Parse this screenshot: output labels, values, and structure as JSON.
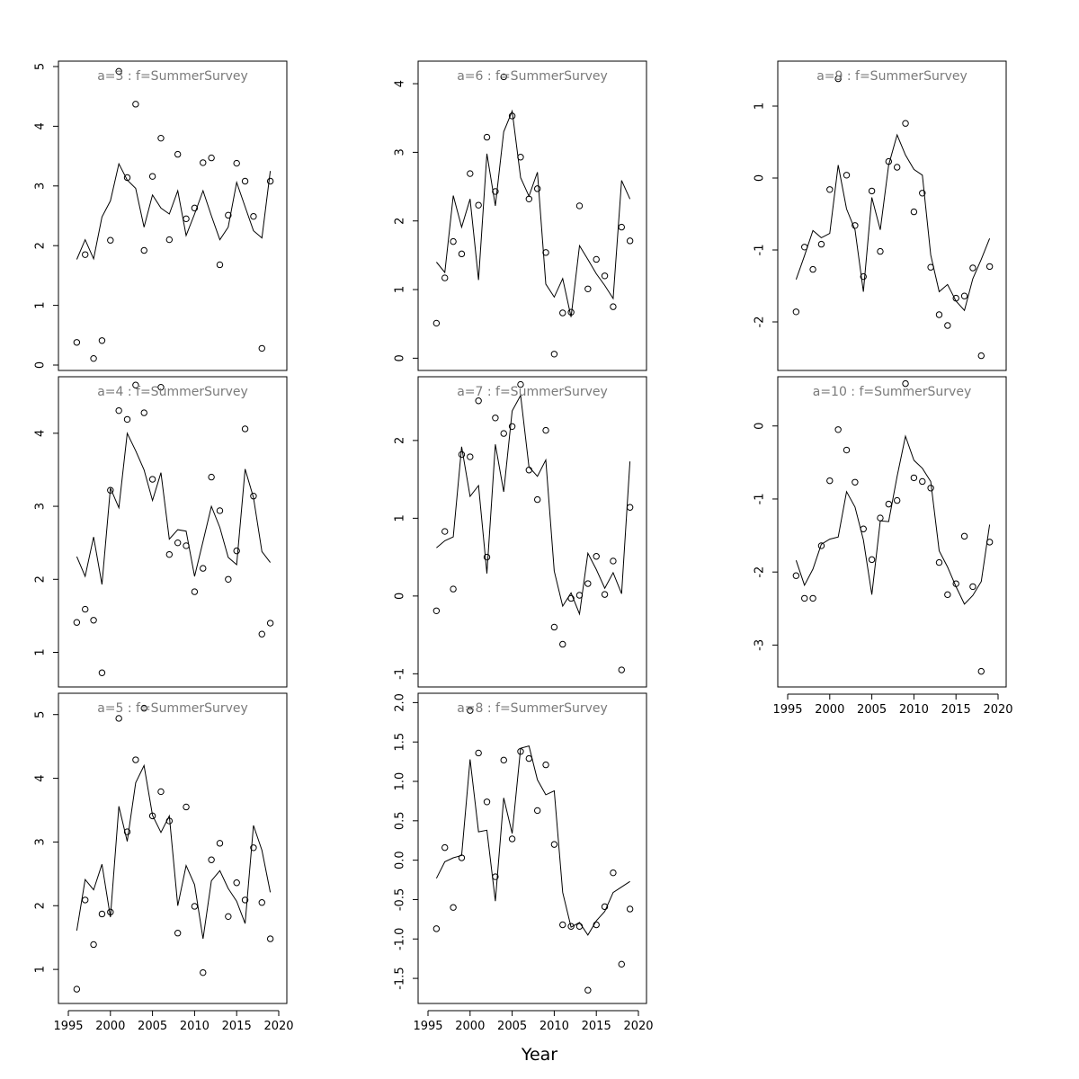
{
  "x_axis_label": "Year",
  "chart_data": [
    {
      "type": "scatter",
      "title": "a=3  :  f=SummerSurvey",
      "xlim": [
        1996,
        2019
      ],
      "ylim": [
        0,
        5
      ],
      "yticks": [
        0,
        1,
        2,
        3,
        4,
        5
      ],
      "x": [
        1996,
        1997,
        1998,
        1999,
        2000,
        2001,
        2002,
        2003,
        2004,
        2005,
        2006,
        2007,
        2008,
        2009,
        2010,
        2011,
        2012,
        2013,
        2014,
        2015,
        2016,
        2017,
        2018,
        2019
      ],
      "series": [
        {
          "kind": "points",
          "values": [
            0.38,
            1.85,
            0.11,
            0.41,
            2.09,
            4.92,
            3.14,
            4.37,
            1.92,
            3.16,
            3.8,
            2.1,
            3.53,
            2.45,
            2.63,
            3.39,
            3.47,
            1.68,
            2.51,
            3.38,
            3.08,
            2.49,
            0.28,
            3.08
          ]
        },
        {
          "kind": "line",
          "values": [
            1.77,
            2.1,
            1.78,
            2.48,
            2.75,
            3.37,
            3.1,
            2.96,
            2.31,
            2.85,
            2.63,
            2.53,
            2.92,
            2.17,
            2.53,
            2.92,
            2.5,
            2.1,
            2.31,
            3.06,
            2.65,
            2.25,
            2.13,
            3.25
          ]
        }
      ]
    },
    {
      "type": "scatter",
      "title": "a=4  :  f=SummerSurvey",
      "xlim": [
        1996,
        2019
      ],
      "ylim": [
        0.6,
        4.7
      ],
      "yticks": [
        1,
        2,
        3,
        4
      ],
      "x": [
        1996,
        1997,
        1998,
        1999,
        2000,
        2001,
        2002,
        2003,
        2004,
        2005,
        2006,
        2007,
        2008,
        2009,
        2010,
        2011,
        2012,
        2013,
        2014,
        2015,
        2016,
        2017,
        2018,
        2019
      ],
      "series": [
        {
          "kind": "points",
          "values": [
            1.41,
            1.59,
            1.44,
            0.72,
            3.22,
            4.31,
            4.19,
            4.66,
            4.28,
            3.37,
            4.63,
            2.34,
            2.5,
            2.46,
            1.83,
            2.15,
            3.4,
            2.94,
            2.0,
            2.39,
            4.06,
            3.14,
            1.25,
            1.4
          ]
        },
        {
          "kind": "line",
          "values": [
            2.31,
            2.04,
            2.58,
            1.93,
            3.25,
            2.98,
            4.0,
            3.76,
            3.5,
            3.08,
            3.46,
            2.55,
            2.68,
            2.66,
            2.04,
            2.52,
            3.0,
            2.71,
            2.3,
            2.2,
            3.51,
            3.12,
            2.38,
            2.23
          ]
        }
      ]
    },
    {
      "type": "scatter",
      "title": "a=5  :  f=SummerSurvey",
      "xlim": [
        1996,
        2019
      ],
      "ylim": [
        0.55,
        5.25
      ],
      "yticks": [
        1,
        2,
        3,
        4,
        5
      ],
      "x": [
        1996,
        1997,
        1998,
        1999,
        2000,
        2001,
        2002,
        2003,
        2004,
        2005,
        2006,
        2007,
        2008,
        2009,
        2010,
        2011,
        2012,
        2013,
        2014,
        2015,
        2016,
        2017,
        2018,
        2019
      ],
      "series": [
        {
          "kind": "points",
          "values": [
            0.69,
            2.09,
            1.39,
            1.87,
            1.9,
            4.94,
            3.16,
            4.29,
            5.1,
            3.41,
            3.79,
            3.33,
            1.57,
            3.55,
            1.99,
            0.95,
            2.72,
            2.98,
            1.83,
            2.36,
            2.09,
            2.91,
            2.05,
            1.48
          ]
        },
        {
          "kind": "line",
          "values": [
            1.61,
            2.41,
            2.25,
            2.65,
            1.82,
            3.56,
            3.01,
            3.93,
            4.2,
            3.42,
            3.15,
            3.41,
            2.0,
            2.63,
            2.33,
            1.48,
            2.39,
            2.55,
            2.27,
            2.07,
            1.72,
            3.26,
            2.87,
            2.21
          ]
        }
      ]
    },
    {
      "type": "scatter",
      "title": "a=6  :  f=SummerSurvey",
      "xlim": [
        1996,
        2019
      ],
      "ylim": [
        -0.1,
        4.25
      ],
      "yticks": [
        0,
        1,
        2,
        3,
        4
      ],
      "x": [
        1996,
        1997,
        1998,
        1999,
        2000,
        2001,
        2002,
        2003,
        2004,
        2005,
        2006,
        2007,
        2008,
        2009,
        2010,
        2011,
        2012,
        2013,
        2014,
        2015,
        2016,
        2017,
        2018,
        2019
      ],
      "series": [
        {
          "kind": "points",
          "values": [
            0.51,
            1.17,
            1.7,
            1.52,
            2.69,
            2.23,
            3.22,
            2.43,
            4.1,
            3.53,
            2.93,
            2.32,
            2.47,
            1.54,
            0.06,
            0.66,
            0.67,
            2.22,
            1.01,
            1.44,
            1.2,
            0.75,
            1.91,
            1.71
          ]
        },
        {
          "kind": "line",
          "values": [
            1.4,
            1.25,
            2.37,
            1.91,
            2.32,
            1.14,
            2.98,
            2.22,
            3.3,
            3.6,
            2.63,
            2.36,
            2.71,
            1.08,
            0.89,
            1.16,
            0.6,
            1.64,
            1.44,
            1.23,
            1.06,
            0.87,
            2.59,
            2.32
          ]
        }
      ]
    },
    {
      "type": "scatter",
      "title": "a=7  :  f=SummerSurvey",
      "xlim": [
        1996,
        2019
      ],
      "ylim": [
        -1.1,
        2.75
      ],
      "yticks": [
        -1,
        0,
        1,
        2
      ],
      "x": [
        1996,
        1997,
        1998,
        1999,
        2000,
        2001,
        2002,
        2003,
        2004,
        2005,
        2006,
        2007,
        2008,
        2009,
        2010,
        2011,
        2012,
        2013,
        2014,
        2015,
        2016,
        2017,
        2018,
        2019
      ],
      "series": [
        {
          "kind": "points",
          "values": [
            -0.19,
            0.83,
            0.09,
            1.82,
            1.79,
            2.51,
            0.5,
            2.29,
            2.09,
            2.18,
            2.72,
            1.62,
            1.24,
            2.13,
            -0.4,
            -0.62,
            -0.03,
            0.01,
            0.16,
            0.51,
            0.02,
            0.45,
            -0.95,
            1.14
          ]
        },
        {
          "kind": "line",
          "values": [
            0.62,
            0.71,
            0.76,
            1.92,
            1.28,
            1.42,
            0.29,
            1.95,
            1.34,
            2.38,
            2.58,
            1.66,
            1.54,
            1.75,
            0.32,
            -0.13,
            0.04,
            -0.23,
            0.55,
            0.34,
            0.1,
            0.3,
            0.03,
            1.73
          ]
        }
      ]
    },
    {
      "type": "scatter",
      "title": "a=8  :  f=SummerSurvey",
      "xlim": [
        1996,
        2019
      ],
      "ylim": [
        -1.75,
        2.05
      ],
      "yticks": [
        -1.5,
        -1.0,
        -0.5,
        0.0,
        0.5,
        1.0,
        1.5,
        2.0
      ],
      "ytick_labels": [
        "-1.5",
        "-1.0",
        "-0.5",
        "0.0",
        "0.5",
        "1.0",
        "1.5",
        "2.0"
      ],
      "x": [
        1996,
        1997,
        1998,
        1999,
        2000,
        2001,
        2002,
        2003,
        2004,
        2005,
        2006,
        2007,
        2008,
        2009,
        2010,
        2011,
        2012,
        2013,
        2014,
        2015,
        2016,
        2017,
        2018,
        2019
      ],
      "series": [
        {
          "kind": "points",
          "values": [
            -0.87,
            0.16,
            -0.6,
            0.03,
            1.9,
            1.36,
            0.74,
            -0.21,
            1.27,
            0.27,
            1.38,
            1.29,
            0.63,
            1.21,
            0.2,
            -0.82,
            -0.84,
            -0.84,
            -1.65,
            -0.82,
            -0.59,
            -0.16,
            -1.32,
            -0.62
          ]
        },
        {
          "kind": "line",
          "values": [
            -0.23,
            -0.02,
            0.03,
            0.06,
            1.28,
            0.36,
            0.38,
            -0.52,
            0.79,
            0.34,
            1.42,
            1.45,
            1.02,
            0.83,
            0.88,
            -0.41,
            -0.85,
            -0.79,
            -0.95,
            -0.77,
            -0.65,
            -0.41,
            -0.34,
            -0.27
          ]
        }
      ]
    },
    {
      "type": "scatter",
      "title": "a=9  :  f=SummerSurvey",
      "xlim": [
        1996,
        2019
      ],
      "ylim": [
        -2.6,
        1.55
      ],
      "yticks": [
        -2,
        -1,
        0,
        1
      ],
      "x": [
        1996,
        1997,
        1998,
        1999,
        2000,
        2001,
        2002,
        2003,
        2004,
        2005,
        2006,
        2007,
        2008,
        2009,
        2010,
        2011,
        2012,
        2013,
        2014,
        2015,
        2016,
        2017,
        2018,
        2019
      ],
      "series": [
        {
          "kind": "points",
          "values": [
            -1.86,
            -0.96,
            -1.27,
            -0.92,
            -0.16,
            1.38,
            0.04,
            -0.66,
            -1.37,
            -0.18,
            -1.02,
            0.23,
            0.15,
            0.76,
            -0.47,
            -0.21,
            -1.24,
            -1.9,
            -2.05,
            -1.67,
            -1.64,
            -1.25,
            -2.47,
            -1.23
          ]
        },
        {
          "kind": "line",
          "values": [
            -1.41,
            -1.08,
            -0.73,
            -0.83,
            -0.77,
            0.18,
            -0.43,
            -0.72,
            -1.58,
            -0.27,
            -0.72,
            0.18,
            0.6,
            0.32,
            0.12,
            0.04,
            -1.07,
            -1.58,
            -1.48,
            -1.71,
            -1.84,
            -1.4,
            -1.13,
            -0.84
          ]
        }
      ]
    },
    {
      "type": "scatter",
      "title": "a=10  :  f=SummerSurvey",
      "xlim": [
        1996,
        2019
      ],
      "ylim": [
        -3.5,
        0.6
      ],
      "yticks": [
        -3,
        -2,
        -1,
        0
      ],
      "x": [
        1996,
        1997,
        1998,
        1999,
        2000,
        2001,
        2002,
        2003,
        2004,
        2005,
        2006,
        2007,
        2008,
        2009,
        2010,
        2011,
        2012,
        2013,
        2014,
        2015,
        2016,
        2017,
        2018,
        2019
      ],
      "series": [
        {
          "kind": "points",
          "values": [
            -2.05,
            -2.36,
            -2.36,
            -1.64,
            -0.75,
            -0.05,
            -0.33,
            -0.77,
            -1.41,
            -1.83,
            -1.26,
            -1.07,
            -1.02,
            0.58,
            -0.71,
            -0.76,
            -0.85,
            -1.87,
            -2.31,
            -2.16,
            -1.51,
            -2.2,
            -3.36,
            -1.59
          ]
        },
        {
          "kind": "line",
          "values": [
            -1.84,
            -2.18,
            -1.96,
            -1.62,
            -1.55,
            -1.52,
            -0.9,
            -1.11,
            -1.56,
            -2.31,
            -1.3,
            -1.31,
            -0.69,
            -0.14,
            -0.47,
            -0.58,
            -0.76,
            -1.71,
            -1.93,
            -2.2,
            -2.44,
            -2.32,
            -2.13,
            -1.35
          ]
        }
      ]
    }
  ]
}
